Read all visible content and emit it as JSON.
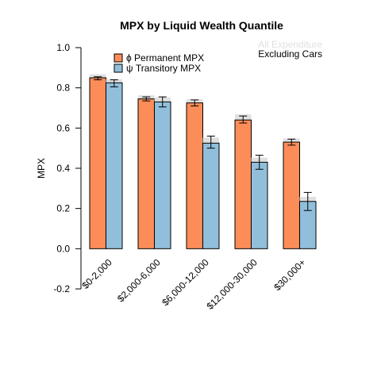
{
  "chart_data": {
    "type": "bar",
    "title": "MPX by Liquid Wealth Quantile",
    "xlabel": "",
    "ylabel": "MPX",
    "ylim": [
      -0.2,
      1.0
    ],
    "yticks": [
      "-0.2",
      "0.0",
      "0.2",
      "0.4",
      "0.6",
      "0.8",
      "1.0"
    ],
    "categories": [
      "$0-2,000",
      "$2,000-6,000",
      "$6,000-12,000",
      "$12,000-30,000",
      "$30,000+"
    ],
    "series": [
      {
        "name": "ϕ Permanent MPX",
        "color": "#fc8d59",
        "values": [
          0.85,
          0.745,
          0.725,
          0.64,
          0.53
        ],
        "err_low": [
          0.84,
          0.735,
          0.71,
          0.625,
          0.515
        ],
        "err_high": [
          0.855,
          0.755,
          0.74,
          0.66,
          0.545
        ],
        "shadow_values": [
          0.86,
          0.755,
          0.735,
          0.66,
          0.54
        ]
      },
      {
        "name": "ψ Transitory MPX",
        "color": "#91bfdb",
        "values": [
          0.825,
          0.73,
          0.525,
          0.43,
          0.235
        ],
        "err_low": [
          0.805,
          0.705,
          0.5,
          0.395,
          0.19
        ],
        "err_high": [
          0.84,
          0.755,
          0.56,
          0.465,
          0.28
        ],
        "shadow_values": [
          0.835,
          0.745,
          0.545,
          0.445,
          0.25
        ]
      }
    ],
    "shadow_color": "#e0e0e0",
    "legend_position": "top-left",
    "annotations": [
      "All Expenditure",
      "Excluding Cars"
    ],
    "annotation_colors": [
      "#e0e0e0",
      "#000000"
    ],
    "grid": false
  }
}
